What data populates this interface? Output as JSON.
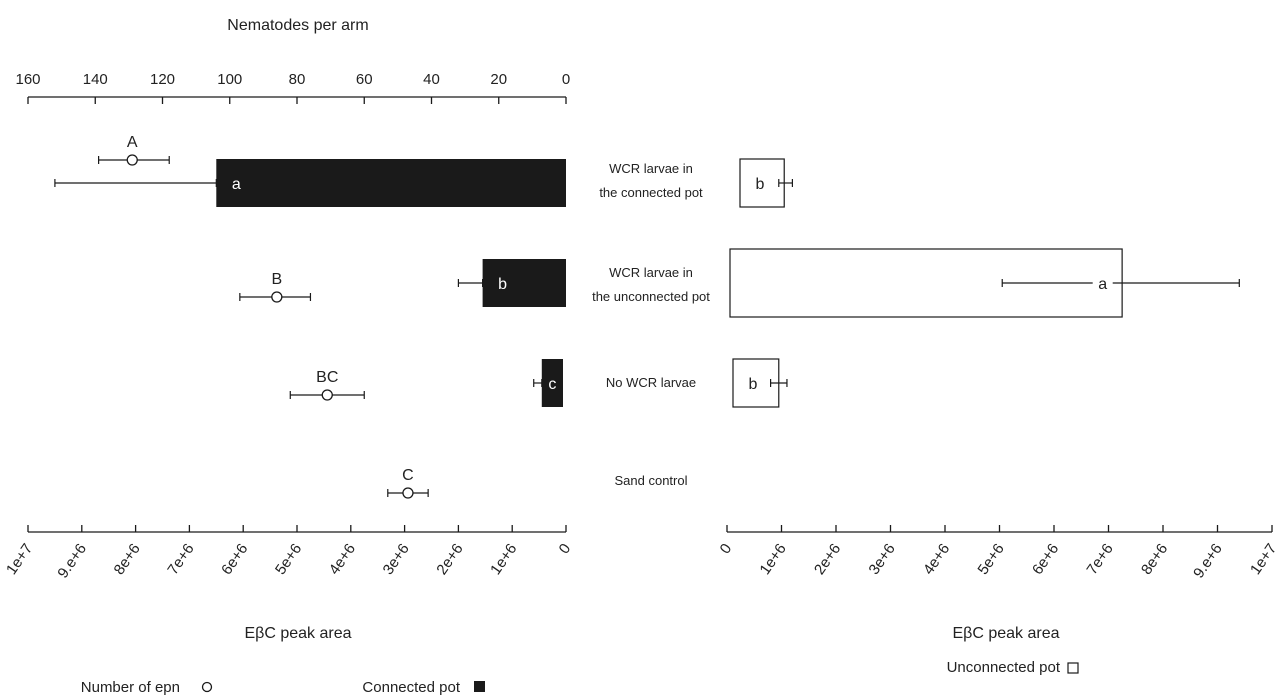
{
  "chart_data": {
    "type": "bar",
    "categories": [
      [
        "WCR larvae in",
        "the connected pot"
      ],
      [
        "WCR larvae in",
        "the unconnected pot"
      ],
      [
        "No WCR larvae"
      ],
      [
        "Sand control"
      ]
    ],
    "top_axis": {
      "title": "Nematodes per arm",
      "range": [
        160,
        0
      ],
      "ticks": [
        160,
        140,
        120,
        100,
        80,
        60,
        40,
        20,
        0
      ],
      "tick_labels": [
        "160",
        "140",
        "120",
        "100",
        "80",
        "60",
        "40",
        "20",
        "0"
      ]
    },
    "bottom_left_axis": {
      "xlabel": "EβC peak area",
      "range": [
        10000000,
        0
      ],
      "ticks": [
        10000000,
        9000000,
        8000000,
        7000000,
        6000000,
        5000000,
        4000000,
        3000000,
        2000000,
        1000000,
        0
      ],
      "tick_labels": [
        "1e+7",
        "9.e+6",
        "8e+6",
        "7e+6",
        "6e+6",
        "5e+6",
        "4e+6",
        "3e+6",
        "2e+6",
        "1e+6",
        "0"
      ]
    },
    "bottom_right_axis": {
      "xlabel": "EβC peak area",
      "range": [
        0,
        10000000
      ],
      "ticks": [
        0,
        1000000,
        2000000,
        3000000,
        4000000,
        5000000,
        6000000,
        7000000,
        8000000,
        9000000,
        10000000
      ],
      "tick_labels": [
        "0",
        "1e+6",
        "2e+6",
        "3e+6",
        "4e+6",
        "5e+6",
        "6e+6",
        "7e+6",
        "8e+6",
        "9.e+6",
        "1e+7"
      ]
    },
    "series": [
      {
        "name": "Number of epn",
        "axis": "top_axis",
        "marker": "open-circle",
        "values": [
          129,
          86,
          71,
          47
        ],
        "error_low": [
          139,
          97,
          82,
          53
        ],
        "error_high": [
          118,
          76,
          60,
          41
        ],
        "labels": [
          "A",
          "B",
          "BC",
          "C"
        ]
      },
      {
        "name": "Connected pot",
        "axis": "bottom_left_axis",
        "marker": "filled-square",
        "values": [
          6500000,
          1550000,
          450000,
          null
        ],
        "error_low": [
          9500000,
          2000000,
          600000,
          null
        ],
        "error_high": [
          6500000,
          1550000,
          450000,
          null
        ],
        "labels": [
          "a",
          "b",
          "c",
          null
        ]
      },
      {
        "name": "Unconnected pot",
        "axis": "bottom_right_axis",
        "marker": "open-square",
        "values": [
          1050000,
          7250000,
          950000,
          null
        ],
        "error_low": [
          950000,
          5050000,
          800000,
          null
        ],
        "error_high": [
          1200000,
          9400000,
          1100000,
          null
        ],
        "labels": [
          "b",
          "a",
          "b",
          null
        ]
      }
    ],
    "legend": [
      {
        "label": "Number of epn",
        "marker": "open-circle"
      },
      {
        "label": "Connected pot",
        "marker": "filled-square"
      },
      {
        "label": "Unconnected pot",
        "marker": "open-square"
      }
    ],
    "colors": {
      "connected": "#1a1a1a",
      "outline": "#1a1a1a",
      "background": "#ffffff"
    }
  }
}
